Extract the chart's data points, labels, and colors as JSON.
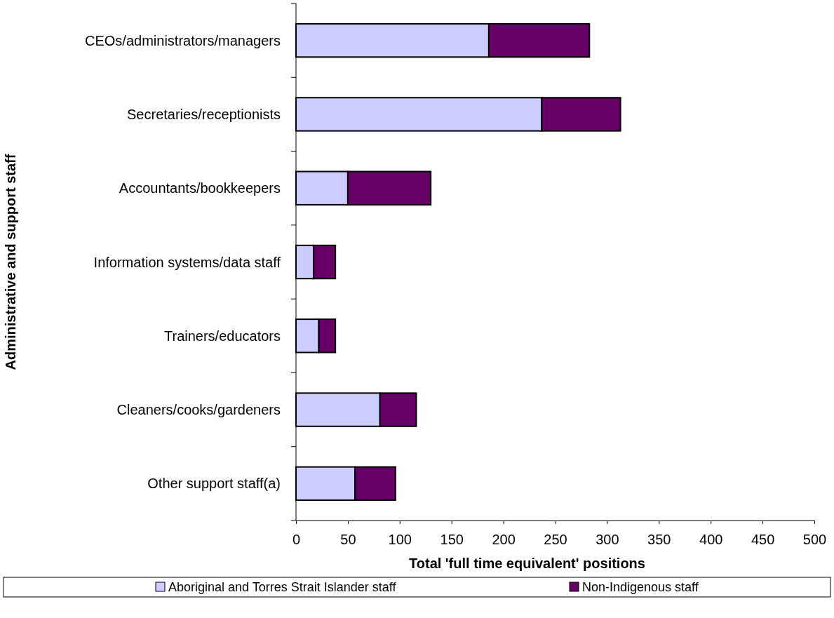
{
  "chart_data": {
    "type": "bar",
    "orientation": "horizontal",
    "stacked": true,
    "xlabel": "Total 'full time equivalent' positions",
    "ylabel": "Administrative and support staff",
    "categories": [
      "CEOs/administrators/managers",
      "Secretaries/receptionists",
      "Accountants/bookkeepers",
      "Information systems/data staff",
      "Trainers/educators",
      "Cleaners/cooks/gardeners",
      "Other support staff(a)"
    ],
    "series": [
      {
        "name": "Aboriginal and Torres Strait Islander staff",
        "color": "#ccccff",
        "values": [
          186,
          237,
          50,
          17,
          22,
          81,
          57
        ]
      },
      {
        "name": "Non-Indigenous staff",
        "color": "#660066",
        "values": [
          97,
          76,
          80,
          21,
          16,
          35,
          39
        ]
      }
    ],
    "xlim": [
      0,
      500
    ],
    "xticks": [
      0,
      50,
      100,
      150,
      200,
      250,
      300,
      350,
      400,
      450,
      500
    ],
    "legend": "bottom",
    "grid": false
  }
}
